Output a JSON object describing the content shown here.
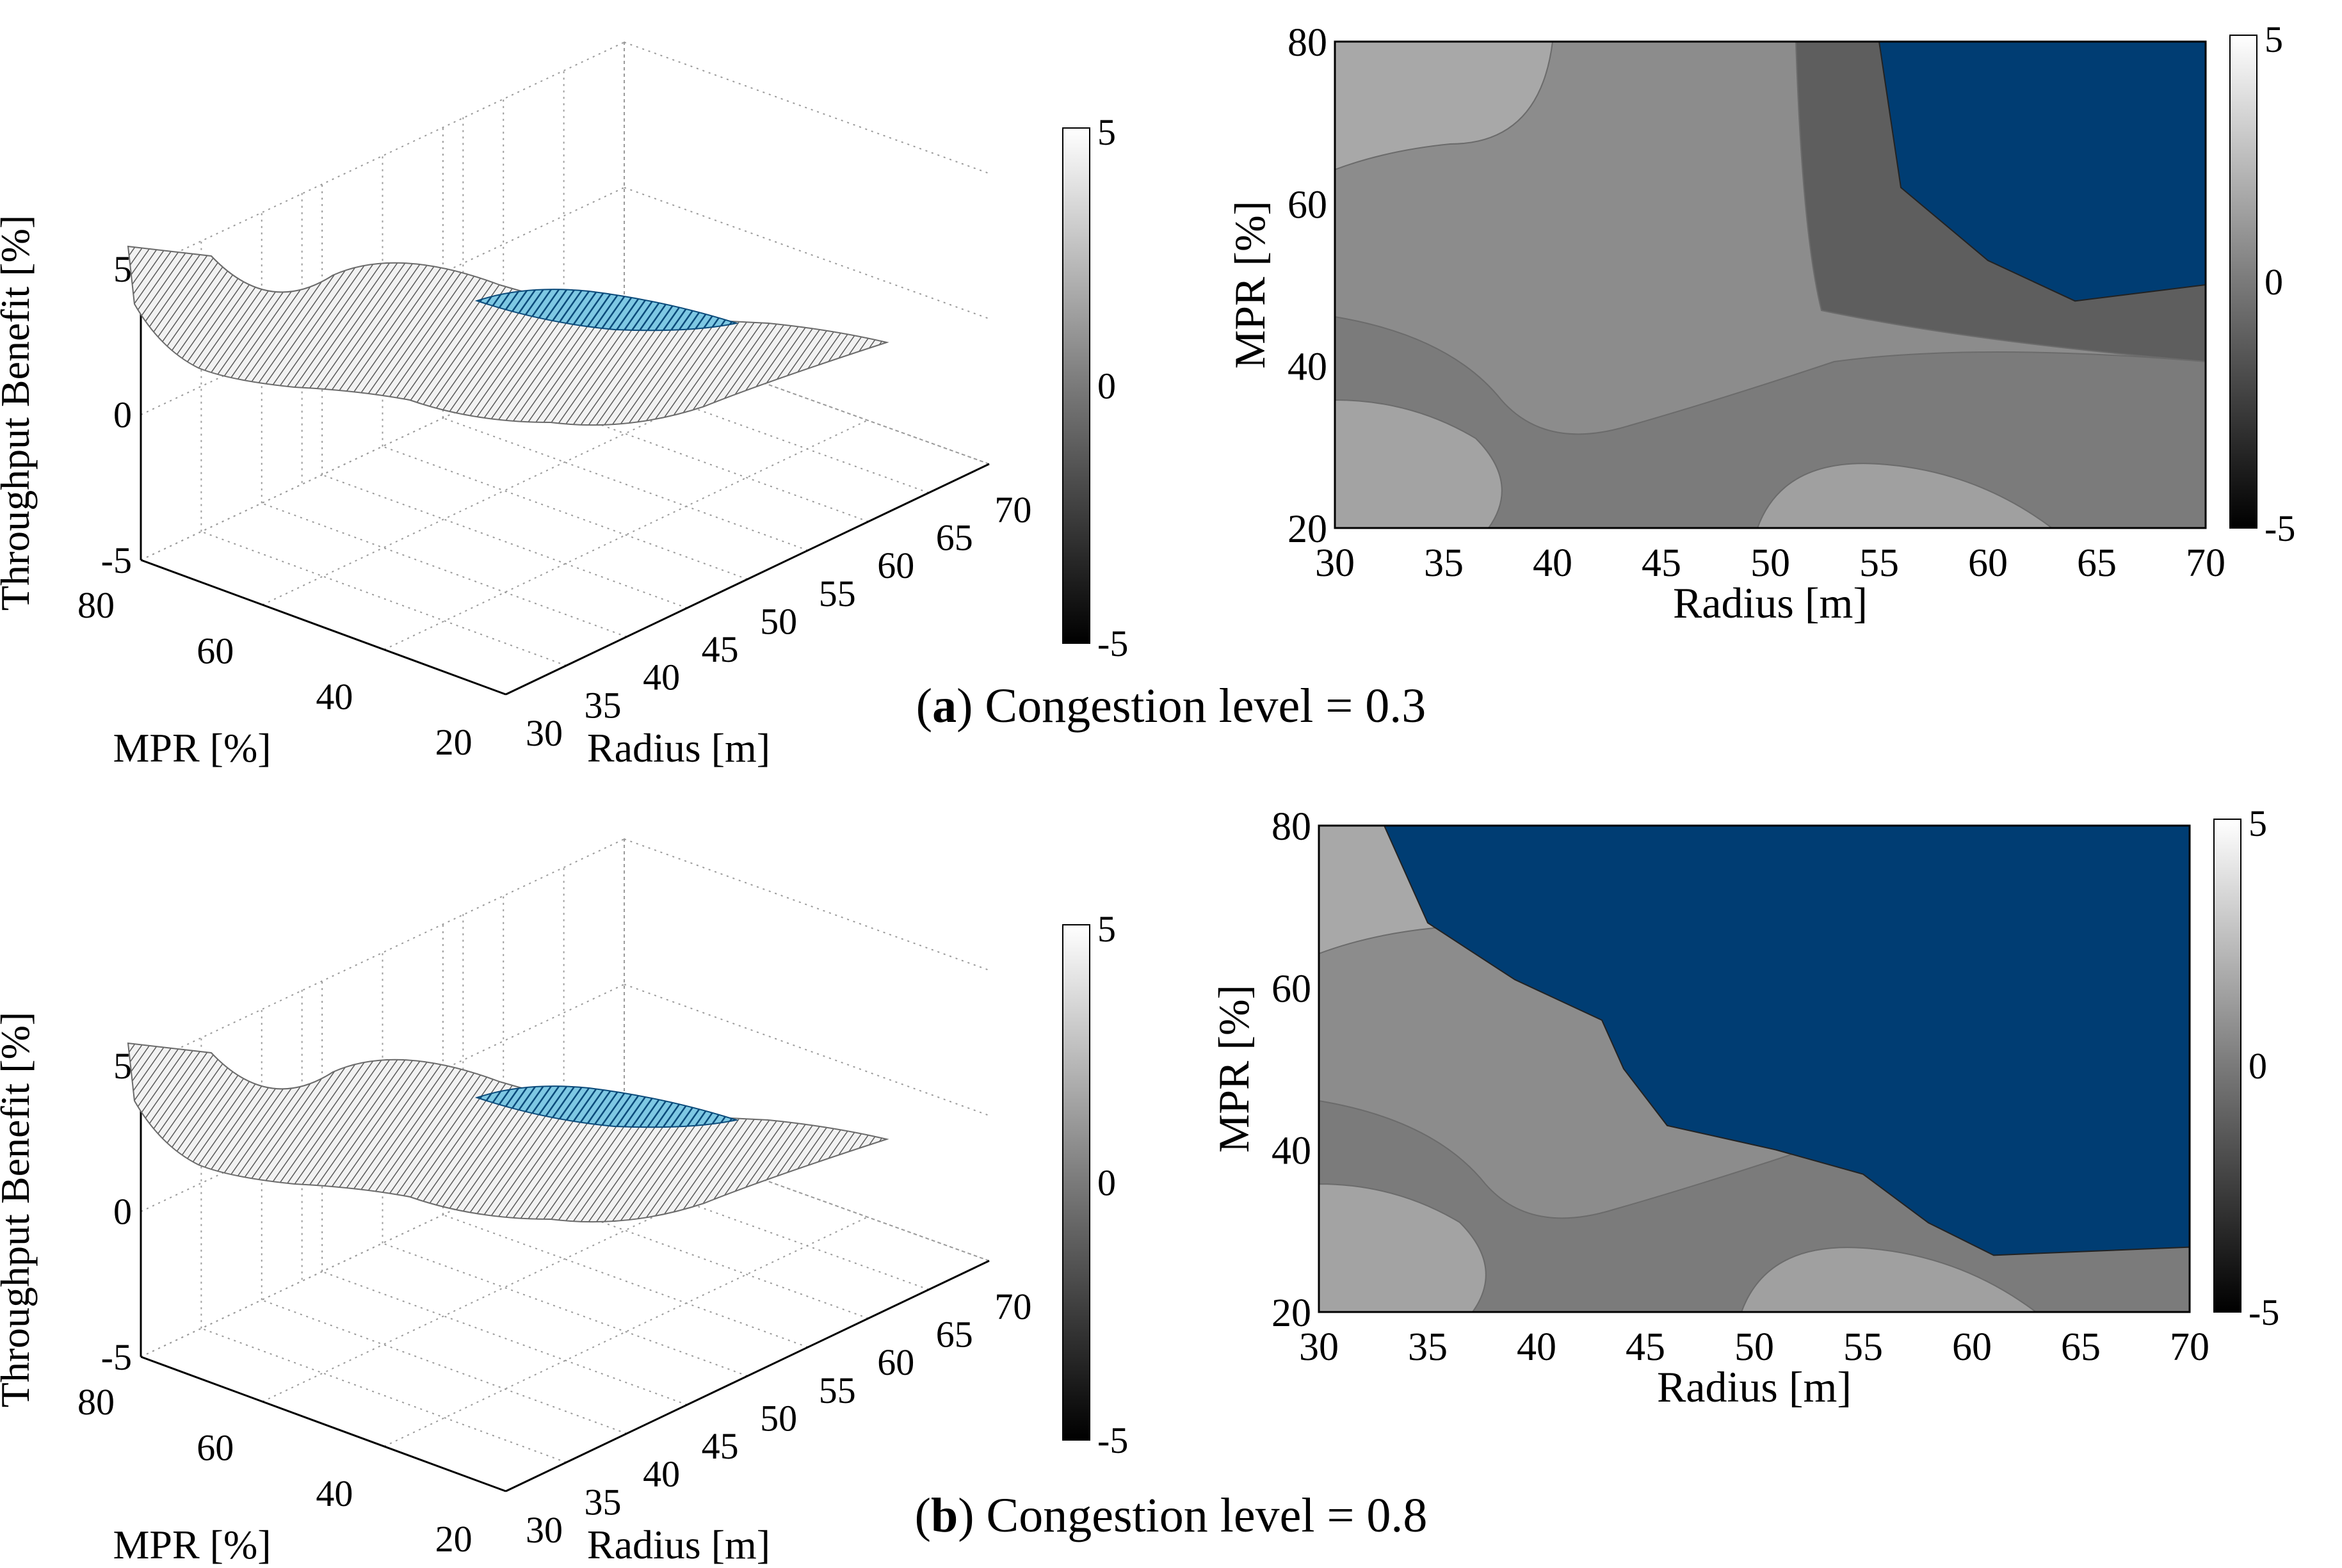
{
  "captions": [
    {
      "letter": "a",
      "text": " Congestion level = 0.3"
    },
    {
      "letter": "b",
      "text": " Congestion level = 0.8"
    }
  ],
  "colors": {
    "negative": "#003d73",
    "surface_white": "#f4f4f4",
    "contour_gray": "#6b6b6b"
  },
  "chart_data": [
    {
      "id": "a-surface",
      "type": "surface3d",
      "zlabel": "Throughput Benefit [%]",
      "xlabel": "Radius [m]",
      "ylabel": "MPR [%]",
      "zticks": [
        "5",
        "0",
        "-5"
      ],
      "zlim": [
        -5,
        5
      ],
      "xticks": [
        "30",
        "35",
        "40",
        "45",
        "50",
        "55",
        "60",
        "65",
        "70"
      ],
      "yticks": [
        "80",
        "60",
        "40",
        "20"
      ],
      "colorbar": {
        "min": "-5",
        "mid": "0",
        "max": "5"
      }
    },
    {
      "id": "a-contour",
      "type": "contour",
      "xlabel": "Radius [m]",
      "ylabel": "MPR [%]",
      "xlim": [
        30,
        70
      ],
      "ylim": [
        20,
        80
      ],
      "xticks": [
        "30",
        "35",
        "40",
        "45",
        "50",
        "55",
        "60",
        "65",
        "70"
      ],
      "yticks": [
        "80",
        "60",
        "40",
        "20"
      ],
      "colorbar": {
        "min": "-5",
        "mid": "0",
        "max": "5"
      },
      "negative_region": [
        [
          55,
          80
        ],
        [
          56,
          62
        ],
        [
          60,
          53
        ],
        [
          64,
          48
        ],
        [
          70,
          50
        ],
        [
          70,
          80
        ]
      ]
    },
    {
      "id": "b-surface",
      "type": "surface3d",
      "zlabel": "Throughput Benefit [%]",
      "xlabel": "Radius [m]",
      "ylabel": "MPR [%]",
      "zticks": [
        "5",
        "0",
        "-5"
      ],
      "zlim": [
        -5,
        5
      ],
      "xticks": [
        "30",
        "35",
        "40",
        "45",
        "50",
        "55",
        "60",
        "65",
        "70"
      ],
      "yticks": [
        "80",
        "60",
        "40",
        "20"
      ],
      "colorbar": {
        "min": "-5",
        "mid": "0",
        "max": "5"
      }
    },
    {
      "id": "b-contour",
      "type": "contour",
      "xlabel": "Radius [m]",
      "ylabel": "MPR [%]",
      "xlim": [
        30,
        70
      ],
      "ylim": [
        20,
        80
      ],
      "xticks": [
        "30",
        "35",
        "40",
        "45",
        "50",
        "55",
        "60",
        "65",
        "70"
      ],
      "yticks": [
        "80",
        "60",
        "40",
        "20"
      ],
      "colorbar": {
        "min": "-5",
        "mid": "0",
        "max": "5"
      },
      "negative_region": [
        [
          33,
          80
        ],
        [
          35,
          68
        ],
        [
          39,
          61
        ],
        [
          43,
          56
        ],
        [
          44,
          50
        ],
        [
          46,
          43
        ],
        [
          51,
          40
        ],
        [
          55,
          37
        ],
        [
          58,
          31
        ],
        [
          61,
          27
        ],
        [
          70,
          28
        ],
        [
          70,
          80
        ]
      ]
    }
  ]
}
